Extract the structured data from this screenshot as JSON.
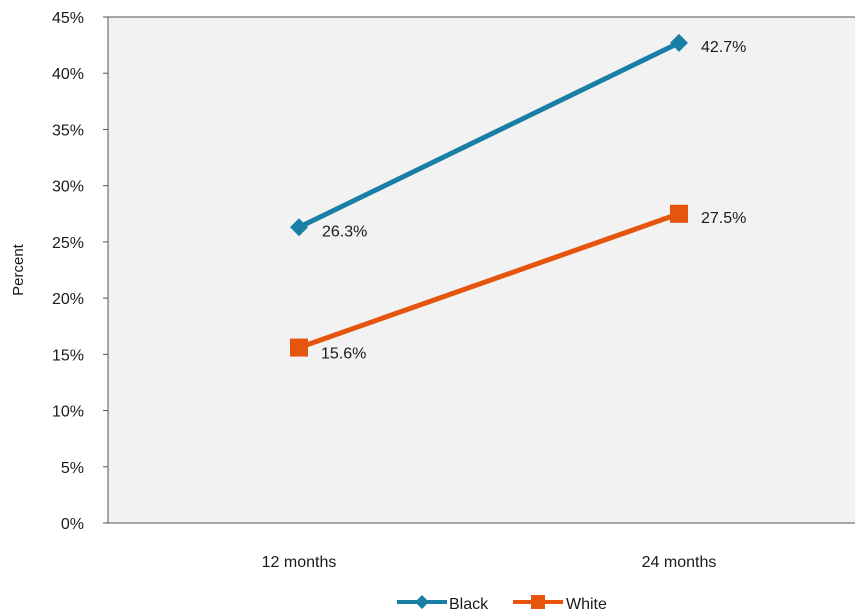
{
  "chart_data": {
    "type": "line",
    "categories": [
      "12 months",
      "24 months"
    ],
    "series": [
      {
        "name": "Black",
        "values": [
          26.3,
          42.7
        ],
        "labels": [
          "26.3%",
          "42.7%"
        ],
        "color": "#1a7fa6",
        "marker": "diamond"
      },
      {
        "name": "White",
        "values": [
          15.6,
          27.5
        ],
        "labels": [
          "15.6%",
          "27.5%"
        ],
        "color": "#e6550d",
        "marker": "square"
      }
    ],
    "ylabel": "Percent",
    "xlabel": "",
    "ylim": [
      0,
      45
    ],
    "yticks": [
      0,
      5,
      10,
      15,
      20,
      25,
      30,
      35,
      40,
      45
    ],
    "ytick_labels": [
      "0%",
      "5%",
      "10%",
      "15%",
      "20%",
      "25%",
      "30%",
      "35%",
      "40%",
      "45%"
    ],
    "grid": false,
    "legend_position": "bottom-center",
    "plot_background": "#f2f2f2"
  }
}
